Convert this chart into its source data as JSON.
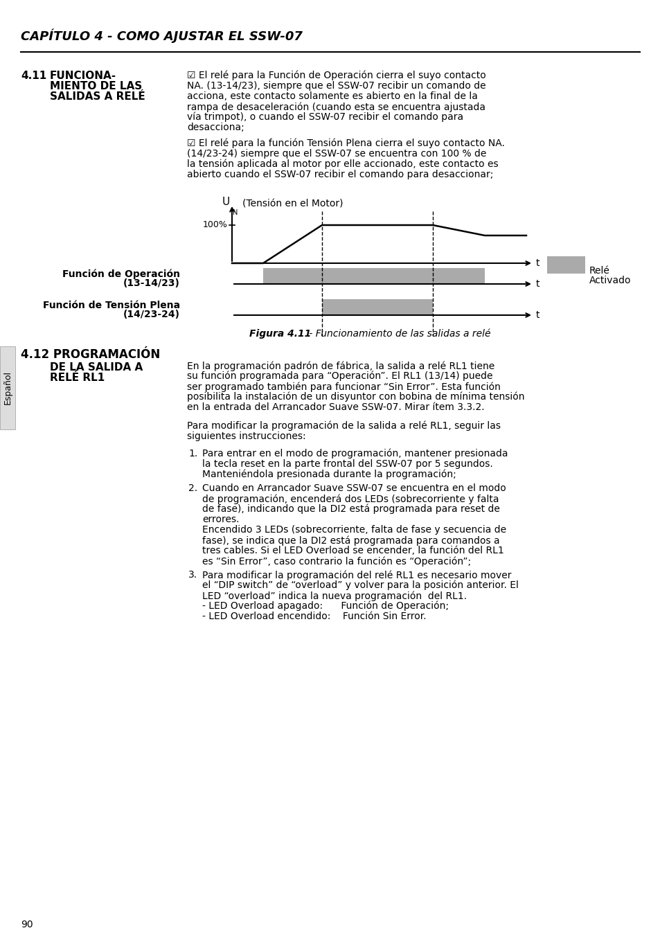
{
  "page_title": "CAPÍTULO 4 - COMO AJUSTAR EL SSW-07",
  "gray_color": "#aaaaaa",
  "bg_color": "#ffffff",
  "page_number": "90",
  "sidebar_text": "Español"
}
